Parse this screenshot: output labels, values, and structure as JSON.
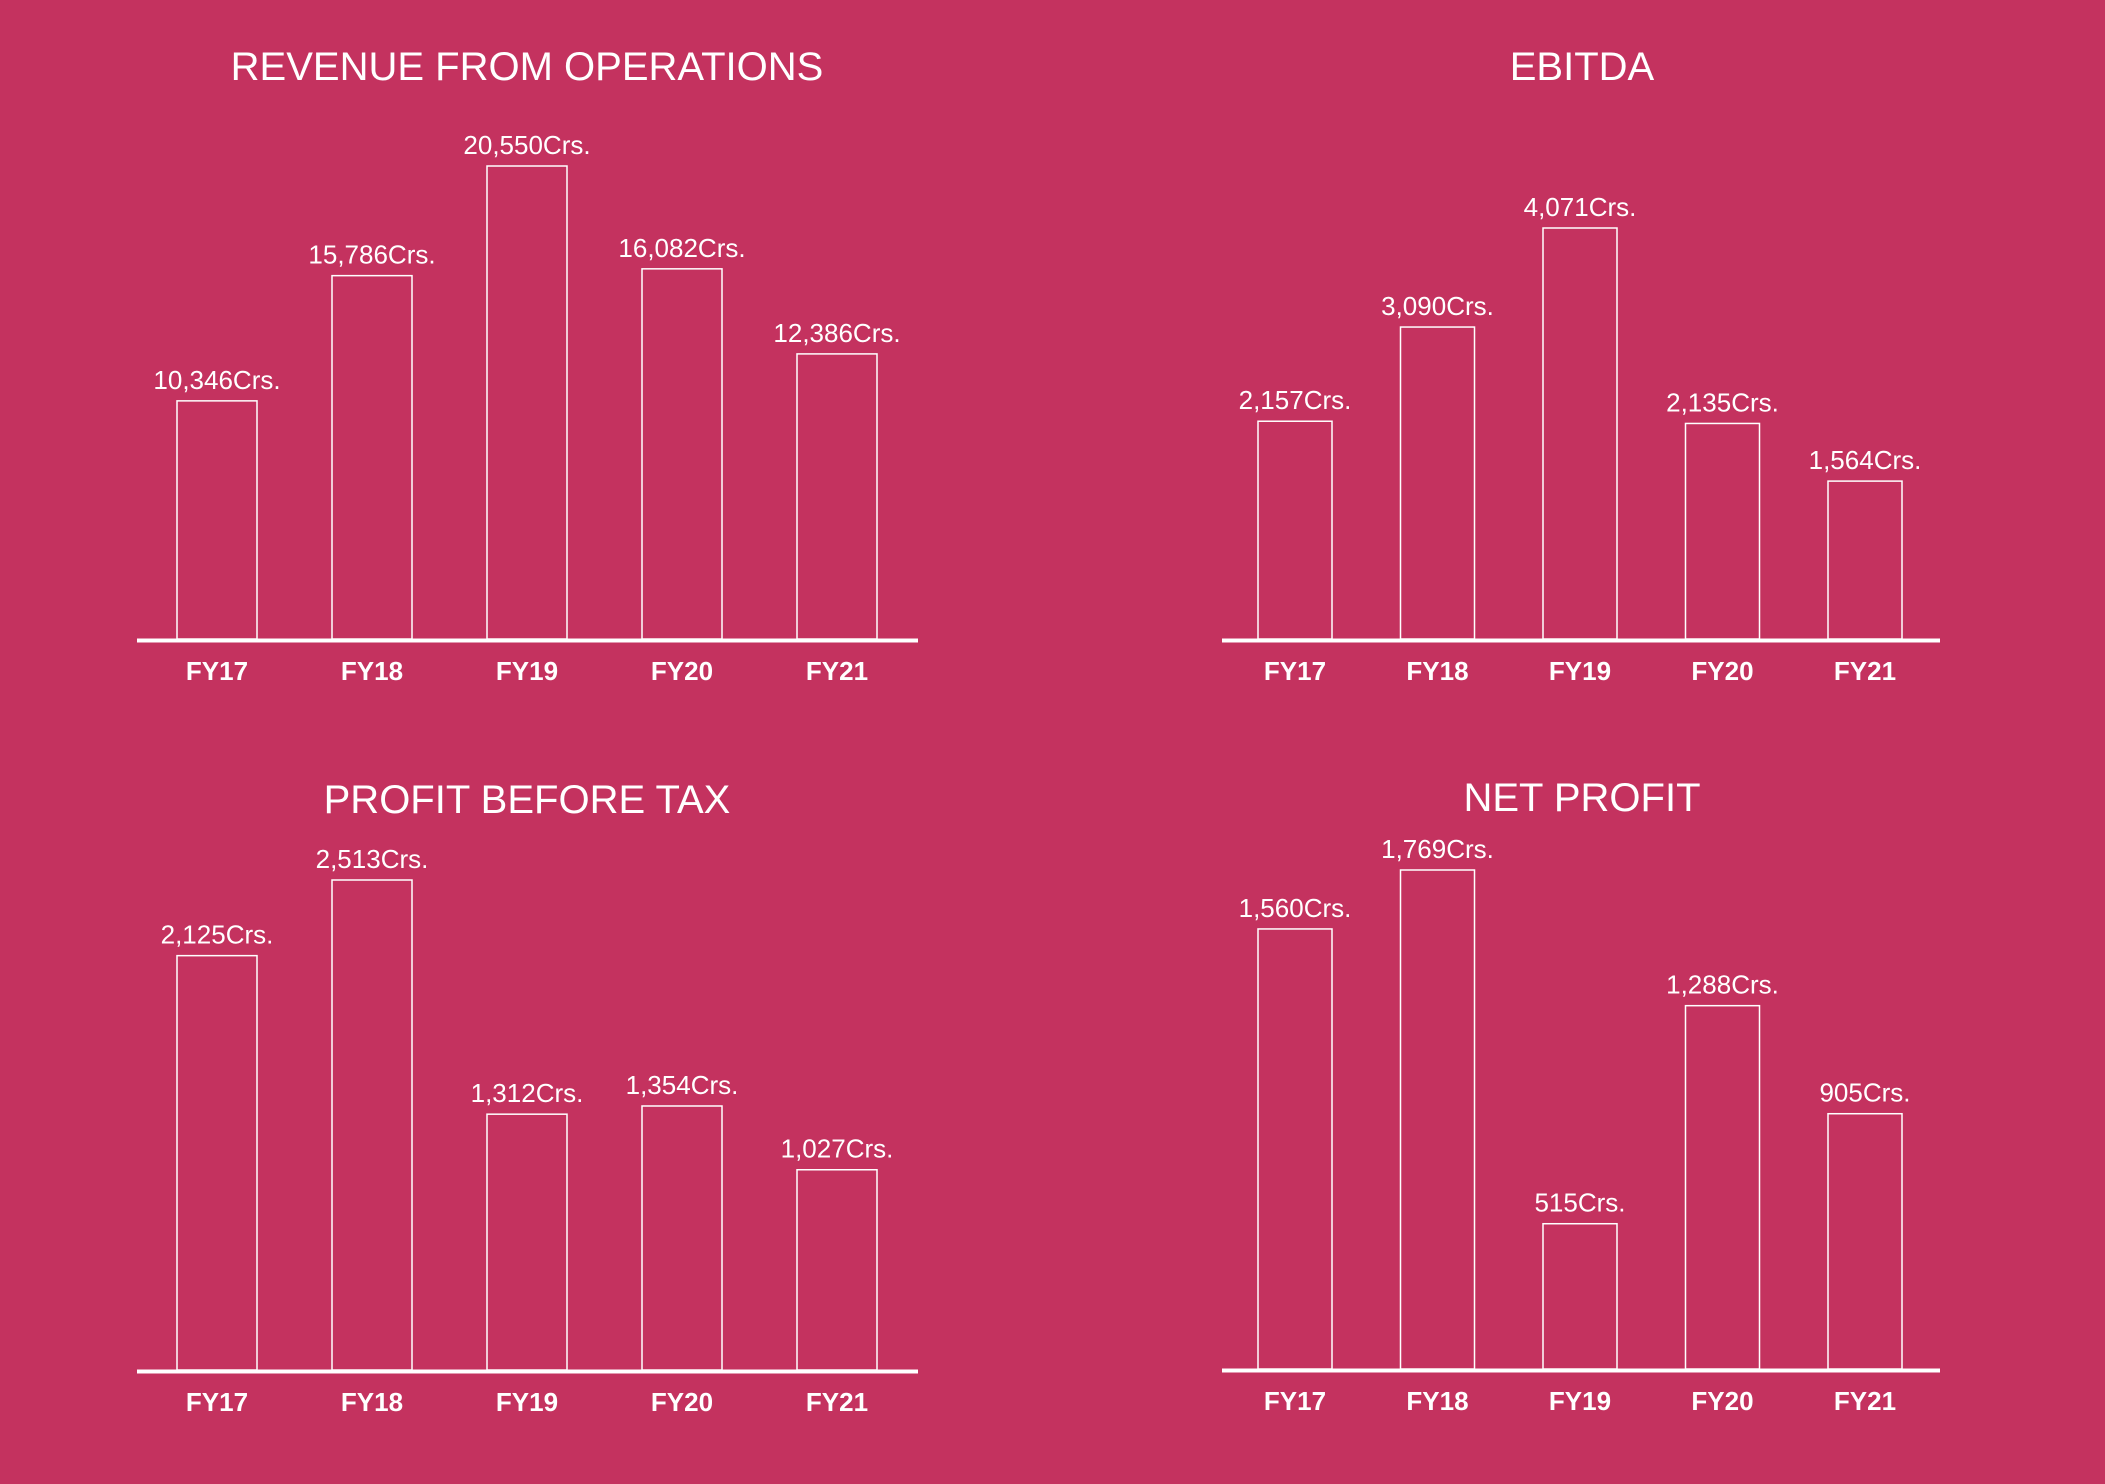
{
  "background_color": "#c4325f",
  "foreground_color": "#ffffff",
  "value_suffix": "Crs.",
  "chart_data": [
    {
      "type": "bar",
      "title": "REVENUE FROM OPERATIONS",
      "categories": [
        "FY17",
        "FY18",
        "FY19",
        "FY20",
        "FY21"
      ],
      "values": [
        10346,
        15786,
        20550,
        16082,
        12386
      ],
      "value_labels": [
        "10,346Crs.",
        "15,786Crs.",
        "20,550Crs.",
        "16,082Crs.",
        "12,386Crs."
      ],
      "xlabel": "",
      "ylabel": "",
      "ylim": [
        0,
        20550
      ],
      "grid": false,
      "legend": "none"
    },
    {
      "type": "bar",
      "title": "EBITDA",
      "categories": [
        "FY17",
        "FY18",
        "FY19",
        "FY20",
        "FY21"
      ],
      "values": [
        2157,
        3090,
        4071,
        2135,
        1564
      ],
      "value_labels": [
        "2,157Crs.",
        "3,090Crs.",
        "4,071Crs.",
        "2,135Crs.",
        "1,564Crs."
      ],
      "xlabel": "",
      "ylabel": "",
      "ylim": [
        0,
        4071
      ],
      "grid": false,
      "legend": "none"
    },
    {
      "type": "bar",
      "title": "PROFIT BEFORE TAX",
      "categories": [
        "FY17",
        "FY18",
        "FY19",
        "FY20",
        "FY21"
      ],
      "values": [
        2125,
        2513,
        1312,
        1354,
        1027
      ],
      "value_labels": [
        "2,125Crs.",
        "2,513Crs.",
        "1,312Crs.",
        "1,354Crs.",
        "1,027Crs."
      ],
      "xlabel": "",
      "ylabel": "",
      "ylim": [
        0,
        2513
      ],
      "grid": false,
      "legend": "none"
    },
    {
      "type": "bar",
      "title": "NET PROFIT",
      "categories": [
        "FY17",
        "FY18",
        "FY19",
        "FY20",
        "FY21"
      ],
      "values": [
        1560,
        1769,
        515,
        1288,
        905
      ],
      "value_labels": [
        "1,560Crs.",
        "1,769Crs.",
        "515Crs.",
        "1,288Crs.",
        "905Crs."
      ],
      "xlabel": "",
      "ylabel": "",
      "ylim": [
        0,
        1769
      ],
      "grid": false,
      "legend": "none"
    }
  ]
}
